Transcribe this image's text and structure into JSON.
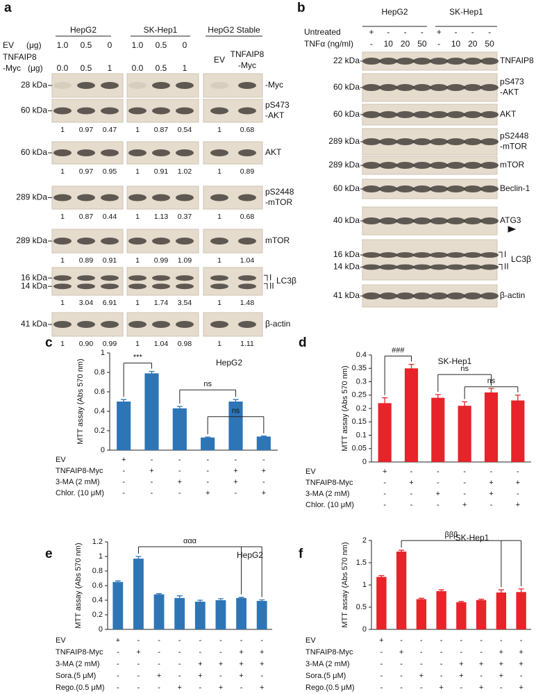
{
  "panels": {
    "a": {
      "label": "a",
      "groups": [
        "HepG2",
        "SK-Hep1",
        "HepG2 Stable"
      ],
      "ev_label": "EV",
      "ev_unit": "(μg)",
      "myc_label": [
        "TNFAIP8",
        "-Myc"
      ],
      "myc_unit": "(μg)",
      "ev_doses": [
        [
          "1.0",
          "0.5",
          "0"
        ],
        [
          "1.0",
          "0.5",
          "0"
        ]
      ],
      "myc_doses": [
        [
          "0.0",
          "0.5",
          "1"
        ],
        [
          "0.0",
          "0.5",
          "1"
        ]
      ],
      "stable_lanes": [
        [
          "EV"
        ],
        [
          "TNFAIP8",
          "-Myc"
        ]
      ],
      "rows": [
        {
          "markers": [
            "28 kDa"
          ],
          "name": [
            "-Myc"
          ]
        },
        {
          "markers": [
            "60 kDa"
          ],
          "name": [
            "pS473",
            "-AKT"
          ],
          "quant": [
            [
              "1",
              "0.97",
              "0.47"
            ],
            [
              "1",
              "0.87",
              "0.54"
            ],
            [
              "1",
              "0.68"
            ]
          ]
        },
        {
          "markers": [
            "60 kDa"
          ],
          "name": [
            "AKT"
          ],
          "quant": [
            [
              "1",
              "0.97",
              "0.95"
            ],
            [
              "1",
              "0.91",
              "1.02"
            ],
            [
              "1",
              "0.89"
            ]
          ]
        },
        {
          "markers": [
            "289 kDa"
          ],
          "name": [
            "pS2448",
            "-mTOR"
          ],
          "quant": [
            [
              "1",
              "0.87",
              "0.44"
            ],
            [
              "1",
              "1.13",
              "0.37"
            ],
            [
              "1",
              "0.68"
            ]
          ]
        },
        {
          "markers": [
            "289 kDa"
          ],
          "name": [
            "mTOR"
          ],
          "quant": [
            [
              "1",
              "0.89",
              "0.91"
            ],
            [
              "1",
              "0.99",
              "1.09"
            ],
            [
              "1",
              "1.04"
            ]
          ]
        },
        {
          "markers": [
            "16 kDa",
            "14 kDa"
          ],
          "levels": [
            "I",
            "II"
          ],
          "name": [
            "LC3β"
          ],
          "quant": [
            [
              "1",
              "3.04",
              "6.91"
            ],
            [
              "1",
              "1.74",
              "3.54"
            ],
            [
              "1",
              "1.48"
            ]
          ]
        },
        {
          "markers": [
            "41 kDa"
          ],
          "name": [
            "β-actin"
          ],
          "quant": [
            [
              "1",
              "0.90",
              "0.99"
            ],
            [
              "1",
              "1.04",
              "0.98"
            ],
            [
              "1",
              "1.11"
            ]
          ]
        }
      ]
    },
    "b": {
      "label": "b",
      "groups": [
        "HepG2",
        "SK-Hep1"
      ],
      "untreated_label": "Untreated",
      "untreated": [
        "+",
        "-",
        "-",
        "-",
        "+",
        "-",
        "-",
        "-"
      ],
      "tnf_label": "TNFα (ng/ml)",
      "tnf": [
        "-",
        "10",
        "20",
        "50",
        "-",
        "10",
        "20",
        "50"
      ],
      "rows": [
        {
          "markers": [
            "22 kDa"
          ],
          "name": [
            "TNFAIP8"
          ]
        },
        {
          "markers": [
            "60 kDa"
          ],
          "name": [
            "pS473",
            "-AKT"
          ]
        },
        {
          "markers": [
            "60 kDa"
          ],
          "name": [
            "AKT"
          ]
        },
        {
          "markers": [
            "289 kDa"
          ],
          "name": [
            "pS2448",
            "-mTOR"
          ]
        },
        {
          "markers": [
            "289 kDa"
          ],
          "name": [
            "mTOR"
          ]
        },
        {
          "markers": [
            "60 kDa"
          ],
          "name": [
            "Beclin-1"
          ]
        },
        {
          "markers": [
            "40 kDa"
          ],
          "name": [
            "ATG3"
          ]
        },
        {
          "markers": [
            "16 kDa",
            "14 kDa"
          ],
          "levels": [
            "I",
            "II"
          ],
          "name": [
            "LC3β"
          ]
        },
        {
          "markers": [
            "41 kDa"
          ],
          "name": [
            "β-actin"
          ]
        }
      ]
    }
  },
  "chart_data": [
    {
      "type": "bar",
      "panel_label": "c",
      "title": "HepG2",
      "y_label": "MTT  assay (Abs 570 nm)",
      "color": "#2e75b6",
      "values": [
        0.5,
        0.79,
        0.43,
        0.13,
        0.5,
        0.14
      ],
      "errors": [
        0.02,
        0.02,
        0.02,
        0.005,
        0.02,
        0.005
      ],
      "ylim": [
        0,
        1
      ],
      "yticks": [
        0,
        0.2,
        0.4,
        0.6,
        0.8,
        1
      ],
      "conditions": [
        {
          "label": "EV",
          "marks": [
            "+",
            "-",
            "-",
            "-",
            "-",
            "-"
          ]
        },
        {
          "label": "TNFAIP8-Myc",
          "marks": [
            "-",
            "+",
            "-",
            "-",
            "+",
            "+"
          ]
        },
        {
          "label": "3-MA (2 mM)",
          "marks": [
            "-",
            "-",
            "+",
            "-",
            "+",
            "-"
          ]
        },
        {
          "label": "Chlor. (10 μM)",
          "marks": [
            "-",
            "-",
            "-",
            "+",
            "-",
            "+"
          ]
        }
      ],
      "annotations": [
        "***",
        "ns",
        "ns"
      ]
    },
    {
      "type": "bar",
      "panel_label": "d",
      "title": "SK-Hep1",
      "y_label": "MTT  assay (Abs 570 nm)",
      "color": "#e8232a",
      "values": [
        0.22,
        0.35,
        0.24,
        0.21,
        0.26,
        0.23
      ],
      "errors": [
        0.02,
        0.015,
        0.012,
        0.015,
        0.015,
        0.02
      ],
      "ylim": [
        0,
        0.4
      ],
      "yticks": [
        0,
        0.05,
        0.1,
        0.15,
        0.2,
        0.25,
        0.3,
        0.35,
        0.4
      ],
      "conditions": [
        {
          "label": "EV",
          "marks": [
            "+",
            "-",
            "-",
            "-",
            "-",
            "-"
          ]
        },
        {
          "label": "TNFAIP8-Myc",
          "marks": [
            "-",
            "+",
            "-",
            "-",
            "+",
            "+"
          ]
        },
        {
          "label": "3-MA (2 mM)",
          "marks": [
            "-",
            "-",
            "+",
            "-",
            "+",
            "-"
          ]
        },
        {
          "label": "Chlor. (10 μM)",
          "marks": [
            "-",
            "-",
            "-",
            "+",
            "-",
            "+"
          ]
        }
      ],
      "annotations": [
        "###",
        "ns",
        "ns"
      ]
    },
    {
      "type": "bar",
      "panel_label": "e",
      "title": "HepG2",
      "y_label": "MTT  assay (Abs 570 nm)",
      "color": "#2e75b6",
      "values": [
        0.65,
        0.97,
        0.48,
        0.43,
        0.38,
        0.4,
        0.43,
        0.39
      ],
      "errors": [
        0.015,
        0.03,
        0.01,
        0.03,
        0.02,
        0.02,
        0.01,
        0.015
      ],
      "ylim": [
        0,
        1.2
      ],
      "yticks": [
        0,
        0.2,
        0.4,
        0.6,
        0.8,
        1,
        1.2
      ],
      "conditions": [
        {
          "label": "EV",
          "marks": [
            "+",
            "-",
            "-",
            "-",
            "-",
            "-",
            "-",
            "-"
          ]
        },
        {
          "label": "TNFAIP8-Myc",
          "marks": [
            "-",
            "+",
            "-",
            "-",
            "-",
            "-",
            "+",
            "+"
          ]
        },
        {
          "label": "3-MA (2 mM)",
          "marks": [
            "-",
            "-",
            "-",
            "-",
            "+",
            "+",
            "+",
            "+"
          ]
        },
        {
          "label": "Sora.(5 μM)",
          "marks": [
            "-",
            "-",
            "+",
            "-",
            "+",
            "-",
            "+",
            "-"
          ]
        },
        {
          "label": "Rego.(0.5 μM)",
          "marks": [
            "-",
            "-",
            "-",
            "+",
            "-",
            "+",
            "-",
            "+"
          ]
        }
      ],
      "annotations": [
        "ααα"
      ]
    },
    {
      "type": "bar",
      "panel_label": "f",
      "title": "SK-Hep1",
      "y_label": "MTT  assay (Abs 570 nm)",
      "color": "#e8232a",
      "values": [
        1.18,
        1.75,
        0.68,
        0.86,
        0.61,
        0.66,
        0.83,
        0.84
      ],
      "errors": [
        0.03,
        0.03,
        0.02,
        0.03,
        0.02,
        0.02,
        0.06,
        0.07
      ],
      "ylim": [
        0,
        2
      ],
      "yticks": [
        0,
        0.5,
        1,
        1.5,
        2
      ],
      "conditions": [
        {
          "label": "EV",
          "marks": [
            "+",
            "-",
            "-",
            "-",
            "-",
            "-",
            "-",
            "-"
          ]
        },
        {
          "label": "TNFAIP8-Myc",
          "marks": [
            "-",
            "+",
            "-",
            "-",
            "-",
            "-",
            "+",
            "+"
          ]
        },
        {
          "label": "3-MA (2 mM)",
          "marks": [
            "-",
            "-",
            "-",
            "-",
            "+",
            "+",
            "+",
            "+"
          ]
        },
        {
          "label": "Sora.(5 μM)",
          "marks": [
            "-",
            "-",
            "+",
            "-",
            "+",
            "-",
            "+",
            "-"
          ]
        },
        {
          "label": "Rego.(0.5 μM)",
          "marks": [
            "-",
            "-",
            "-",
            "+",
            "-",
            "+",
            "-",
            "+"
          ]
        }
      ],
      "annotations": [
        "βββ"
      ]
    }
  ]
}
